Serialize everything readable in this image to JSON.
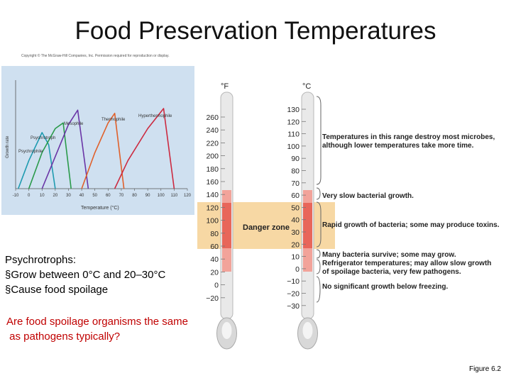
{
  "title": "Food Preservation Temperatures",
  "copyright": "Copyright © The McGraw-Hill Companies, Inc. Permission required for reproduction or display.",
  "growth_chart": {
    "ylabel": "Growth rate",
    "xlabel": "Temperature (°C)",
    "xticks": [
      "-10",
      "0",
      "10",
      "20",
      "30",
      "40",
      "50",
      "60",
      "70",
      "80",
      "90",
      "100",
      "110",
      "120"
    ],
    "curve_labels": {
      "psychrophile": "Psychrophile",
      "psychrotroph": "Psychrotroph",
      "mesophile": "Mesophile",
      "thermophile": "Thermophile",
      "hyperthermophile": "Hyperthermophile"
    }
  },
  "chart_data": {
    "type": "line",
    "xlabel": "Temperature (°C)",
    "ylabel": "Growth rate",
    "xlim": [
      -10,
      120
    ],
    "series": [
      {
        "name": "Psychrophile",
        "color": "#1f9bb0",
        "x": [
          -8,
          0,
          10,
          15,
          20
        ],
        "y": [
          0,
          0.35,
          0.7,
          0.55,
          0
        ]
      },
      {
        "name": "Psychrotroph",
        "color": "#2a9a4a",
        "x": [
          0,
          10,
          20,
          26,
          32
        ],
        "y": [
          0,
          0.45,
          0.75,
          0.82,
          0
        ]
      },
      {
        "name": "Mesophile",
        "color": "#6a35a6",
        "x": [
          10,
          20,
          30,
          37,
          45
        ],
        "y": [
          0,
          0.4,
          0.8,
          0.98,
          0
        ]
      },
      {
        "name": "Thermophile",
        "color": "#e0602a",
        "x": [
          40,
          50,
          60,
          65,
          72
        ],
        "y": [
          0,
          0.45,
          0.82,
          0.94,
          0
        ]
      },
      {
        "name": "Hyperthermophile",
        "color": "#cc2a40",
        "x": [
          65,
          75,
          90,
          102,
          110
        ],
        "y": [
          0,
          0.35,
          0.75,
          1.0,
          0
        ]
      }
    ]
  },
  "thermometer": {
    "f_unit": "°F",
    "c_unit": "°C",
    "f_ticks": [
      "260",
      "240",
      "220",
      "200",
      "180",
      "160",
      "140",
      "120",
      "100",
      "80",
      "60",
      "40",
      "20",
      "0",
      "−20"
    ],
    "c_ticks": [
      "130",
      "120",
      "110",
      "100",
      "90",
      "80",
      "70",
      "60",
      "50",
      "40",
      "30",
      "20",
      "10",
      "0",
      "−10",
      "−20",
      "−30"
    ],
    "danger_zone": "Danger zone",
    "annotations": {
      "destroy_line1": "Temperatures in this range destroy most microbes,",
      "destroy_line2": "although lower temperatures take more time.",
      "slow_growth": "Very slow bacterial growth.",
      "rapid_growth": "Rapid growth of bacteria; some may produce toxins.",
      "survive": "Many bacteria survive; some may grow.",
      "fridge_line1": "Refrigerator temperatures; may allow slow growth",
      "fridge_line2": "of spoilage bacteria, very few pathogens.",
      "no_growth": "No significant growth below freezing."
    },
    "colors": {
      "danger_band": "#f7d8a4",
      "mercury_hot": "#e8665a",
      "mercury_light": "#f2a39a"
    }
  },
  "psychrotrophs": {
    "heading": "Psychrotrophs:",
    "bullet1": "§Grow between 0°C and 20–30°C",
    "bullet2": "§Cause food spoilage"
  },
  "question": {
    "line1": "Are food spoilage organisms the same",
    "line2": " as pathogens typically?"
  },
  "figure_label": "Figure 6.2"
}
